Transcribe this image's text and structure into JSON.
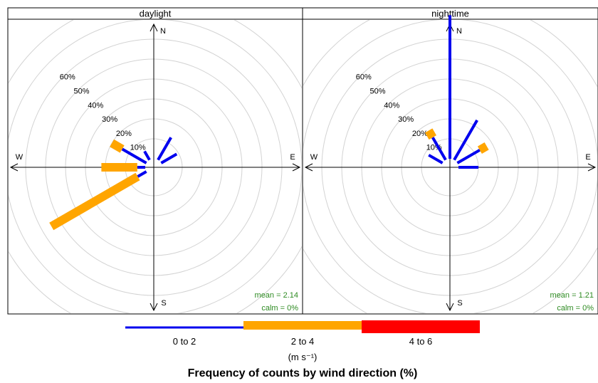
{
  "chart_data": {
    "type": "windrose",
    "title": "Frequency of counts by wind direction (%)",
    "unit_label": "(m s⁻¹)",
    "ring_labels": [
      "10%",
      "20%",
      "30%",
      "40%",
      "50%",
      "60%"
    ],
    "ring_values": [
      10,
      20,
      30,
      40,
      50,
      60
    ],
    "max_radius_value": 75,
    "compass": [
      "N",
      "E",
      "S",
      "W"
    ],
    "key": [
      {
        "label": "0 to 2",
        "color": "#0000ee"
      },
      {
        "label": "2 to 4",
        "color": "#ffa500"
      },
      {
        "label": "4 to 6",
        "color": "#ff0000"
      }
    ],
    "panels": [
      {
        "name": "daylight",
        "mean": "mean = 2.14",
        "calm": "calm = 0%",
        "directions": [
          {
            "dir": 30,
            "bins": [
              13
            ]
          },
          {
            "dir": 60,
            "bins": [
              9
            ]
          },
          {
            "dir": 240,
            "bins": [
              5,
              50
            ]
          },
          {
            "dir": 270,
            "bins": [
              4,
              18
            ]
          },
          {
            "dir": 300,
            "bins": [
              14,
              6
            ]
          },
          {
            "dir": 330,
            "bins": [
              5
            ]
          }
        ]
      },
      {
        "name": "nighttime",
        "mean": "mean = 1.21",
        "calm": "calm = 0%",
        "directions": [
          {
            "dir": 0,
            "bins": [
              72
            ]
          },
          {
            "dir": 30,
            "bins": [
              23
            ]
          },
          {
            "dir": 60,
            "bins": [
              13,
              4
            ]
          },
          {
            "dir": 90,
            "bins": [
              10
            ]
          },
          {
            "dir": 300,
            "bins": [
              8
            ]
          },
          {
            "dir": 330,
            "bins": [
              13,
              4
            ]
          }
        ]
      }
    ]
  }
}
